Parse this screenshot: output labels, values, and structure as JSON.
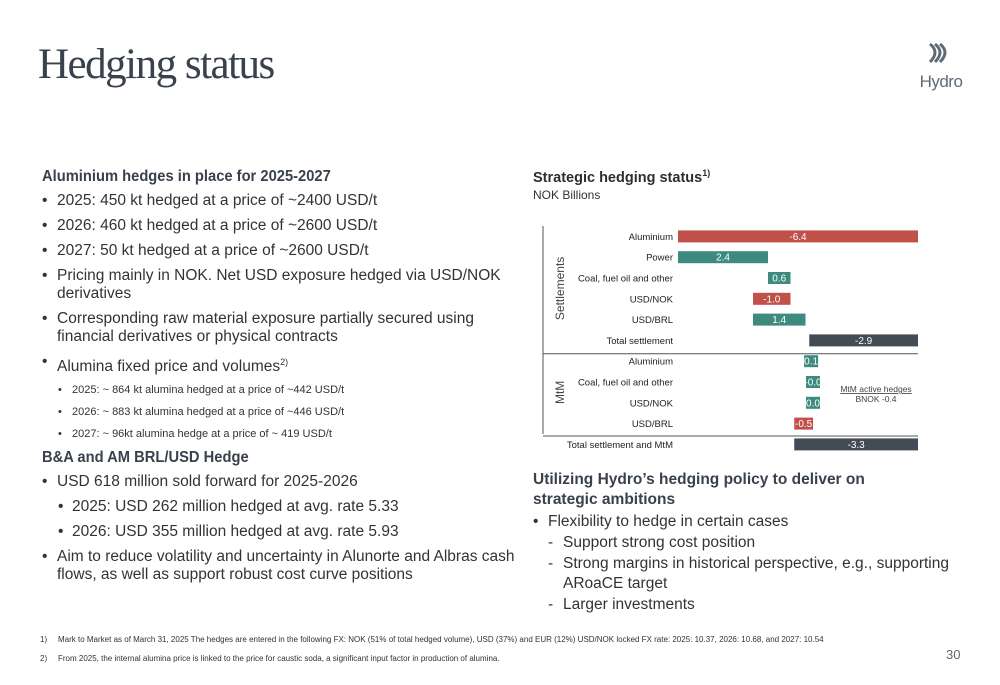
{
  "page": {
    "title": "Hedging status",
    "logo_text": "Hydro",
    "page_number": "30"
  },
  "left": {
    "section1": {
      "heading": "Aluminium hedges in place for 2025-2027",
      "bullets": [
        "2025: 450 kt hedged at a price of ~2400 USD/t",
        "2026: 460 kt hedged at a price of ~2600 USD/t",
        "2027:   50 kt hedged at a price of ~2600 USD/t",
        "Pricing mainly in NOK. Net USD exposure hedged via USD/NOK derivatives",
        "Corresponding raw material exposure partially secured using financial derivatives or physical contracts",
        "Alumina fixed price and volumes"
      ],
      "alumina_sup": "2)",
      "sub_bullets": [
        "2025: ~ 864 kt alumina hedged at a price of ~442 USD/t",
        "2026: ~ 883 kt alumina hedged at a price of ~446 USD/t",
        "2027: ~ 96kt alumina hedge at a price of ~ 419 USD/t"
      ]
    },
    "section2": {
      "heading": "B&A and AM BRL/USD Hedge",
      "bullets": [
        "USD 618 million sold forward for 2025-2026",
        "2025: USD 262 million hedged at avg. rate 5.33",
        "2026: USD 355 million hedged at avg. rate 5.93",
        "Aim to reduce volatility and uncertainty in Alunorte and Albras cash flows, as well as support robust cost curve positions"
      ]
    }
  },
  "right": {
    "chart_title": "Strategic hedging status",
    "chart_title_sup": "1)",
    "chart_unit": "NOK Billions",
    "heading": "Utilizing Hydro’s hedging policy to deliver on strategic ambitions",
    "bullets": [
      {
        "text": "Flexibility to hedge in certain cases",
        "kind": "bullet"
      },
      {
        "text": "Support strong cost position",
        "kind": "dash"
      },
      {
        "text": "Strong margins in historical perspective, e.g., supporting ARoaCE target",
        "kind": "dash"
      },
      {
        "text": "Larger investments",
        "kind": "dash"
      }
    ]
  },
  "chart_data": {
    "type": "bar",
    "subtype": "waterfall",
    "title": "Strategic hedging status",
    "unit": "NOK Billions",
    "groups": [
      {
        "name": "Settlements",
        "rows": [
          "Aluminium",
          "Power",
          "Coal, fuel oil and other",
          "USD/NOK",
          "USD/BRL",
          "Total settlement"
        ]
      },
      {
        "name": "MtM",
        "rows": [
          "Aluminium",
          "Coal, fuel oil and other",
          "USD/NOK",
          "USD/BRL"
        ]
      }
    ],
    "rows": [
      {
        "label": "Aluminium",
        "group": "Settlements",
        "value": -6.4,
        "value_label": "-6.4",
        "kind": "step"
      },
      {
        "label": "Power",
        "group": "Settlements",
        "value": 2.4,
        "value_label": "2.4",
        "kind": "step"
      },
      {
        "label": "Coal, fuel oil and other",
        "group": "Settlements",
        "value": 0.6,
        "value_label": "0.6",
        "kind": "step"
      },
      {
        "label": "USD/NOK",
        "group": "Settlements",
        "value": -1.0,
        "value_label": "-1.0",
        "kind": "step"
      },
      {
        "label": "USD/BRL",
        "group": "Settlements",
        "value": 1.4,
        "value_label": "1.4",
        "kind": "step"
      },
      {
        "label": "Total settlement",
        "group": "Settlements",
        "value": -2.9,
        "value_label": "-2.9",
        "kind": "total"
      },
      {
        "label": "Aluminium",
        "group": "MtM",
        "value": 0.1,
        "value_label": "0.1",
        "kind": "step"
      },
      {
        "label": "Coal, fuel oil and other",
        "group": "MtM",
        "value": -0.0,
        "value_label": "-0.0",
        "kind": "step"
      },
      {
        "label": "USD/NOK",
        "group": "MtM",
        "value": 0.0,
        "value_label": "0.0",
        "kind": "step"
      },
      {
        "label": "USD/BRL",
        "group": "MtM",
        "value": -0.5,
        "value_label": "-0.5",
        "kind": "step"
      },
      {
        "label": "Total settlement and MtM",
        "group": "Total",
        "value": -3.3,
        "value_label": "-3.3",
        "kind": "total"
      }
    ],
    "annotation": {
      "line1": "MtM active hedges",
      "line2": "BNOK -0.4"
    },
    "colors": {
      "negative": "#c0504a",
      "positive": "#3f8a7e",
      "total": "#434b55"
    },
    "xlim": [
      -6.4,
      0
    ]
  },
  "footnotes": [
    {
      "num": "1)",
      "text": "Mark to Market as of March 31, 2025 The hedges are entered in the following FX: NOK (51% of total hedged volume), USD (37%) and EUR (12%) USD/NOK locked FX rate: 2025: 10.37, 2026: 10.68, and 2027: 10.54"
    },
    {
      "num": "2)",
      "text": "From 2025, the internal alumina price is linked to the price for caustic soda, a significant input factor in production of alumina."
    }
  ]
}
